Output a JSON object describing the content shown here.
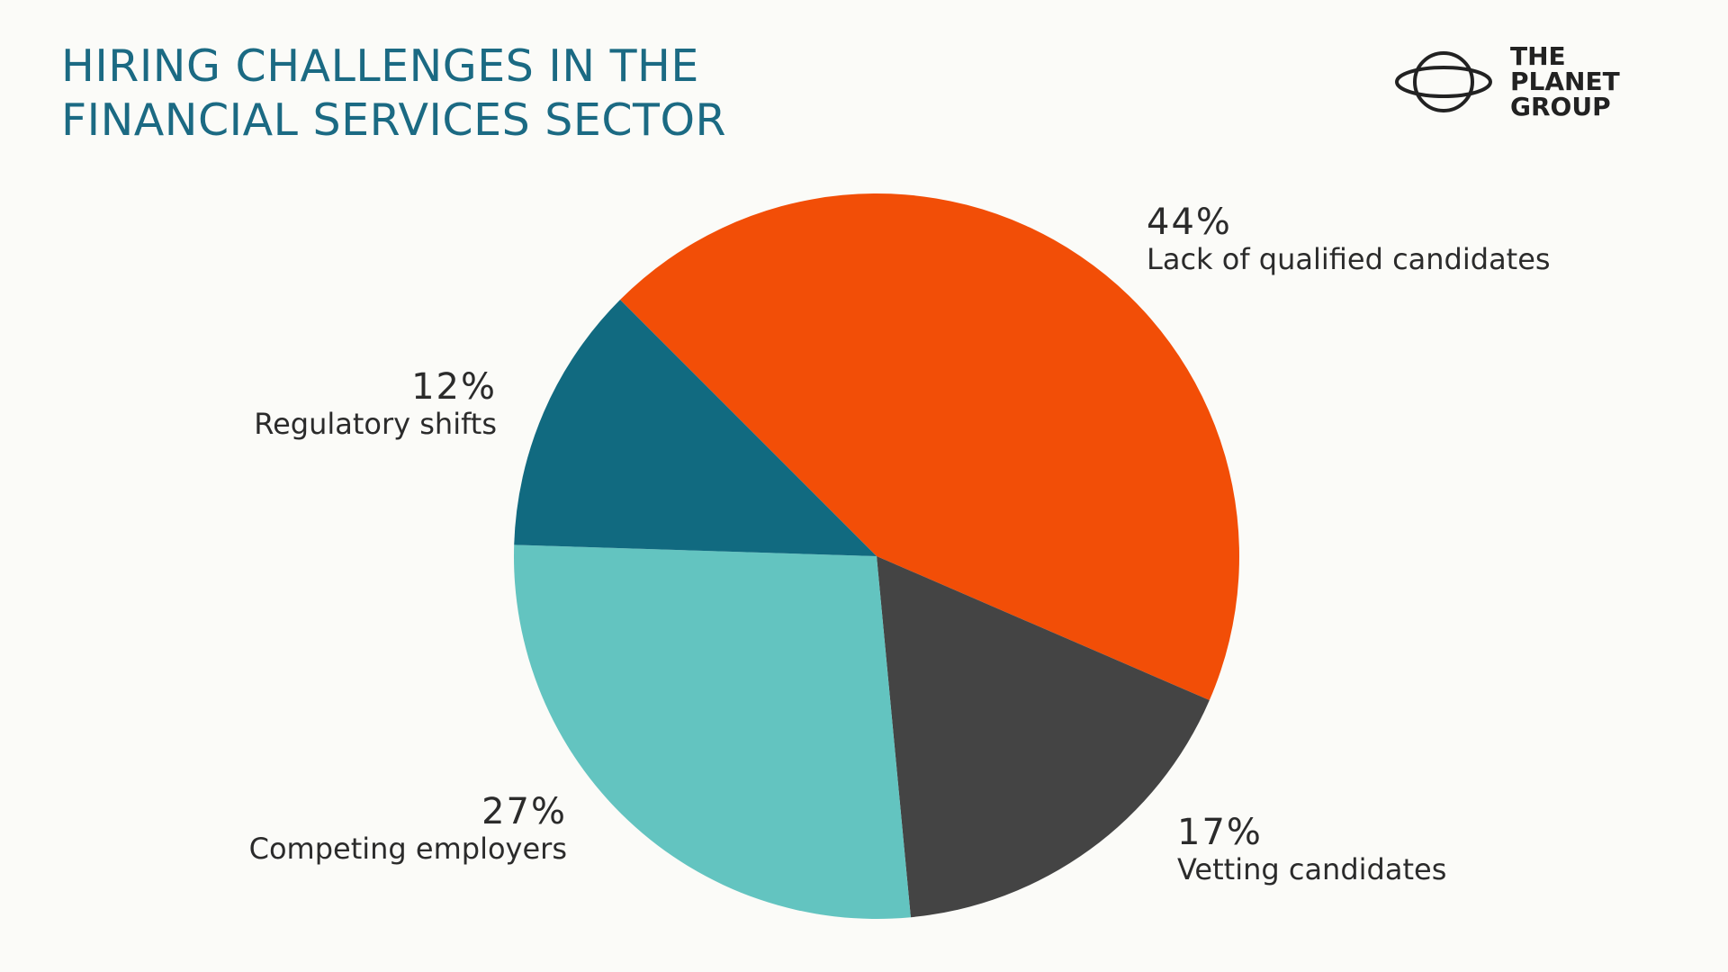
{
  "title": {
    "line1": "HIRING CHALLENGES IN THE",
    "line2": "FINANCIAL SERVICES SECTOR"
  },
  "logo": {
    "line1": "THE",
    "line2": "PLANET",
    "line3": "GROUP",
    "icon": "planet-ring-icon"
  },
  "colors": {
    "title": "#1b6a83",
    "background": "#fbfbf8",
    "text": "#2b2b2b"
  },
  "chart_data": {
    "type": "pie",
    "slices": [
      {
        "label": "Lack of qualified candidates",
        "value": 44,
        "value_label": "44%",
        "color": "#f24e07"
      },
      {
        "label": "Vetting candidates",
        "value": 17,
        "value_label": "17%",
        "color": "#444444"
      },
      {
        "label": "Competing employers",
        "value": 27,
        "value_label": "27%",
        "color": "#63c4c0"
      },
      {
        "label": "Regulatory shifts",
        "value": 12,
        "value_label": "12%",
        "color": "#116a80"
      }
    ]
  }
}
